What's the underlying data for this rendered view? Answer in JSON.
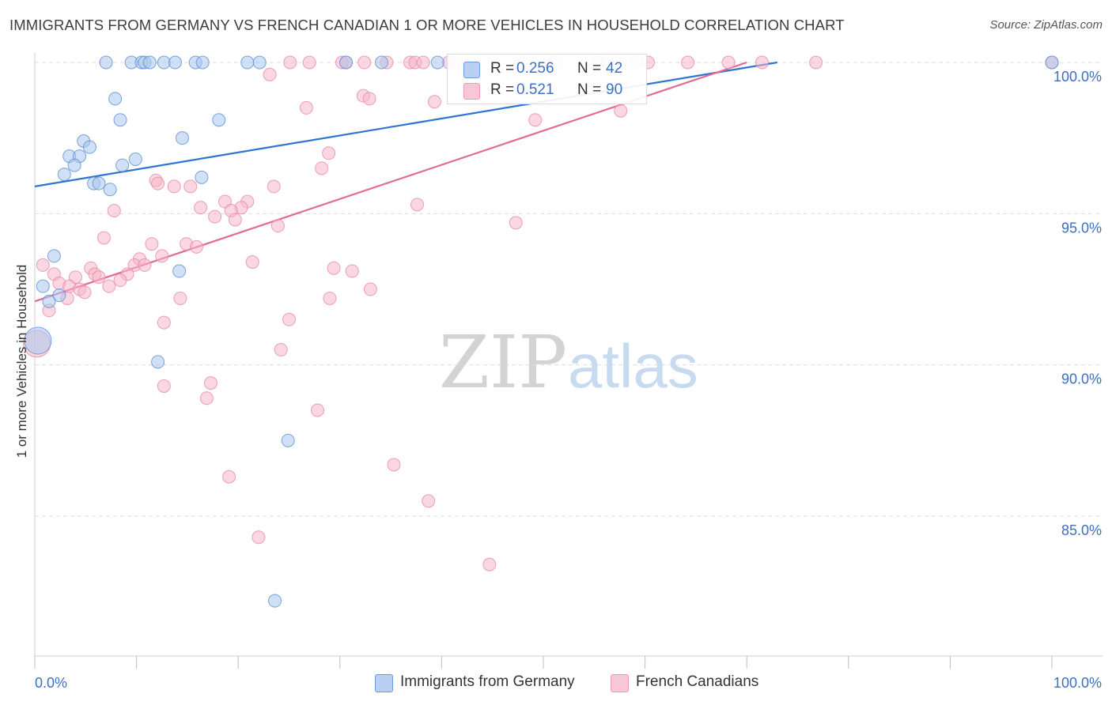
{
  "title": "IMMIGRANTS FROM GERMANY VS FRENCH CANADIAN 1 OR MORE VEHICLES IN HOUSEHOLD CORRELATION CHART",
  "source": "Source: ZipAtlas.com",
  "colors": {
    "blue_fill": "#a9c6ef",
    "blue_stroke": "#5b8fd6",
    "blue_line": "#2e74d0",
    "pink_fill": "#f5b6c9",
    "pink_stroke": "#e88aa8",
    "pink_line": "#e46a94",
    "tick_text": "#3d6fc4",
    "grid": "#dddddd"
  },
  "legend": {
    "rows": [
      {
        "r_label": "R =",
        "r_value": "0.256",
        "n_label": "N =",
        "n_value": "42"
      },
      {
        "r_label": "R =",
        "r_value": "0.521",
        "n_label": "N =",
        "n_value": "90"
      }
    ]
  },
  "bottom_legend": {
    "series1": "Immigrants from Germany",
    "series2": "French Canadians"
  },
  "chart_data": {
    "type": "scatter",
    "title": "IMMIGRANTS FROM GERMANY VS FRENCH CANADIAN 1 OR MORE VEHICLES IN HOUSEHOLD CORRELATION CHART",
    "xlabel": "",
    "ylabel": "1 or more Vehicles in Household",
    "xlim": [
      0,
      100
    ],
    "ylim": [
      80.5,
      100.5
    ],
    "x_tick_labels": [
      {
        "value": 0,
        "label": "0.0%"
      },
      {
        "value": 100,
        "label": "100.0%"
      }
    ],
    "x_minor_ticks": [
      0,
      10,
      20,
      30,
      40,
      50,
      60,
      70,
      80,
      90,
      100
    ],
    "y_ticks": [
      {
        "value": 100,
        "label": "100.0%"
      },
      {
        "value": 95,
        "label": "95.0%"
      },
      {
        "value": 90,
        "label": "90.0%"
      },
      {
        "value": 85,
        "label": "85.0%"
      }
    ],
    "watermark": {
      "zip": "ZIP",
      "atlas": "atlas"
    },
    "series": [
      {
        "name": "Immigrants from Germany",
        "color": "#a9c6ef",
        "R": 0.256,
        "N": 42,
        "trend": {
          "x0": 0,
          "y0": 95.9,
          "x1": 73,
          "y1": 100
        },
        "points": [
          {
            "x": 7,
            "y": 100
          },
          {
            "x": 9.5,
            "y": 100
          },
          {
            "x": 10.5,
            "y": 100
          },
          {
            "x": 10.8,
            "y": 100
          },
          {
            "x": 11.3,
            "y": 100
          },
          {
            "x": 12.7,
            "y": 100
          },
          {
            "x": 13.8,
            "y": 100
          },
          {
            "x": 15.8,
            "y": 100
          },
          {
            "x": 16.5,
            "y": 100
          },
          {
            "x": 20.9,
            "y": 100
          },
          {
            "x": 22.1,
            "y": 100
          },
          {
            "x": 30.6,
            "y": 100
          },
          {
            "x": 34.1,
            "y": 100
          },
          {
            "x": 39.6,
            "y": 100
          },
          {
            "x": 100,
            "y": 100
          },
          {
            "x": 7.9,
            "y": 98.8
          },
          {
            "x": 8.4,
            "y": 98.1
          },
          {
            "x": 18.1,
            "y": 98.1
          },
          {
            "x": 14.5,
            "y": 97.5
          },
          {
            "x": 4.8,
            "y": 97.4
          },
          {
            "x": 5.4,
            "y": 97.2
          },
          {
            "x": 3.4,
            "y": 96.9
          },
          {
            "x": 4.4,
            "y": 96.9
          },
          {
            "x": 9.9,
            "y": 96.8
          },
          {
            "x": 3.9,
            "y": 96.6
          },
          {
            "x": 8.6,
            "y": 96.6
          },
          {
            "x": 2.9,
            "y": 96.3
          },
          {
            "x": 16.4,
            "y": 96.2
          },
          {
            "x": 5.8,
            "y": 96.0
          },
          {
            "x": 6.3,
            "y": 96.0
          },
          {
            "x": 7.4,
            "y": 95.8
          },
          {
            "x": 1.9,
            "y": 93.6
          },
          {
            "x": 14.2,
            "y": 93.1
          },
          {
            "x": 0.8,
            "y": 92.6
          },
          {
            "x": 2.4,
            "y": 92.3
          },
          {
            "x": 1.4,
            "y": 92.1
          },
          {
            "x": 0.3,
            "y": 90.8,
            "size": "large"
          },
          {
            "x": 12.1,
            "y": 90.1
          },
          {
            "x": 24.9,
            "y": 87.5
          },
          {
            "x": 23.6,
            "y": 82.2
          }
        ]
      },
      {
        "name": "French Canadians",
        "color": "#f5b6c9",
        "R": 0.521,
        "N": 90,
        "trend": {
          "x0": 0,
          "y0": 92.1,
          "x1": 70,
          "y1": 100
        },
        "points": [
          {
            "x": 25.1,
            "y": 100
          },
          {
            "x": 27,
            "y": 100
          },
          {
            "x": 30.2,
            "y": 100
          },
          {
            "x": 30.6,
            "y": 100
          },
          {
            "x": 32.4,
            "y": 100
          },
          {
            "x": 34.6,
            "y": 100
          },
          {
            "x": 36.9,
            "y": 100
          },
          {
            "x": 37.4,
            "y": 100
          },
          {
            "x": 38.2,
            "y": 100
          },
          {
            "x": 40.7,
            "y": 100
          },
          {
            "x": 41.2,
            "y": 100
          },
          {
            "x": 47.8,
            "y": 100
          },
          {
            "x": 51.2,
            "y": 100
          },
          {
            "x": 55.4,
            "y": 100
          },
          {
            "x": 56.3,
            "y": 100
          },
          {
            "x": 59.2,
            "y": 100
          },
          {
            "x": 60.3,
            "y": 100
          },
          {
            "x": 64.2,
            "y": 100
          },
          {
            "x": 68.2,
            "y": 100
          },
          {
            "x": 71.5,
            "y": 100
          },
          {
            "x": 76.8,
            "y": 100
          },
          {
            "x": 100,
            "y": 100
          },
          {
            "x": 23.1,
            "y": 99.6
          },
          {
            "x": 32.3,
            "y": 98.9
          },
          {
            "x": 32.9,
            "y": 98.8
          },
          {
            "x": 26.7,
            "y": 98.5
          },
          {
            "x": 39.3,
            "y": 98.7
          },
          {
            "x": 49.2,
            "y": 98.1
          },
          {
            "x": 57.6,
            "y": 98.4
          },
          {
            "x": 28.2,
            "y": 96.5
          },
          {
            "x": 28.9,
            "y": 97.0
          },
          {
            "x": 11.9,
            "y": 96.1
          },
          {
            "x": 12.1,
            "y": 96.0
          },
          {
            "x": 13.7,
            "y": 95.9
          },
          {
            "x": 15.3,
            "y": 95.9
          },
          {
            "x": 23.5,
            "y": 95.9
          },
          {
            "x": 18.7,
            "y": 95.4
          },
          {
            "x": 20.9,
            "y": 95.4
          },
          {
            "x": 37.6,
            "y": 95.3
          },
          {
            "x": 7.8,
            "y": 95.1
          },
          {
            "x": 16.3,
            "y": 95.2
          },
          {
            "x": 20.3,
            "y": 95.2
          },
          {
            "x": 19.3,
            "y": 95.1
          },
          {
            "x": 17.7,
            "y": 94.9
          },
          {
            "x": 19.7,
            "y": 94.8
          },
          {
            "x": 47.3,
            "y": 94.7
          },
          {
            "x": 23.9,
            "y": 94.6
          },
          {
            "x": 6.8,
            "y": 94.2
          },
          {
            "x": 11.5,
            "y": 94.0
          },
          {
            "x": 14.9,
            "y": 94.0
          },
          {
            "x": 15.9,
            "y": 93.9
          },
          {
            "x": 12.5,
            "y": 93.6
          },
          {
            "x": 10.3,
            "y": 93.5
          },
          {
            "x": 21.4,
            "y": 93.4
          },
          {
            "x": 9.8,
            "y": 93.3
          },
          {
            "x": 10.8,
            "y": 93.3
          },
          {
            "x": 0.8,
            "y": 93.3
          },
          {
            "x": 5.5,
            "y": 93.2
          },
          {
            "x": 29.4,
            "y": 93.2
          },
          {
            "x": 31.2,
            "y": 93.1
          },
          {
            "x": 5.9,
            "y": 93.0
          },
          {
            "x": 9.1,
            "y": 93.0
          },
          {
            "x": 1.9,
            "y": 93.0
          },
          {
            "x": 4.0,
            "y": 92.9
          },
          {
            "x": 6.3,
            "y": 92.9
          },
          {
            "x": 8.4,
            "y": 92.8
          },
          {
            "x": 2.4,
            "y": 92.7
          },
          {
            "x": 3.4,
            "y": 92.6
          },
          {
            "x": 4.4,
            "y": 92.5
          },
          {
            "x": 7.3,
            "y": 92.6
          },
          {
            "x": 33.0,
            "y": 92.5
          },
          {
            "x": 4.9,
            "y": 92.4
          },
          {
            "x": 3.2,
            "y": 92.2
          },
          {
            "x": 14.3,
            "y": 92.2
          },
          {
            "x": 29.0,
            "y": 92.2
          },
          {
            "x": 1.4,
            "y": 91.8
          },
          {
            "x": 12.7,
            "y": 91.4
          },
          {
            "x": 25.0,
            "y": 91.5
          },
          {
            "x": 0.2,
            "y": 90.7,
            "size": "large"
          },
          {
            "x": 24.2,
            "y": 90.5
          },
          {
            "x": 17.3,
            "y": 89.4
          },
          {
            "x": 12.7,
            "y": 89.3
          },
          {
            "x": 16.9,
            "y": 88.9
          },
          {
            "x": 27.8,
            "y": 88.5
          },
          {
            "x": 35.3,
            "y": 86.7
          },
          {
            "x": 19.1,
            "y": 86.3
          },
          {
            "x": 38.7,
            "y": 85.5
          },
          {
            "x": 22.0,
            "y": 84.3
          },
          {
            "x": 44.7,
            "y": 83.4
          }
        ]
      }
    ]
  }
}
